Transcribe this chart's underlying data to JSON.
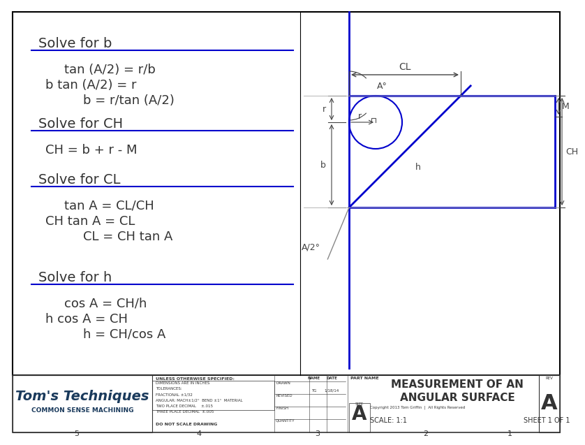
{
  "bg_color": "#ffffff",
  "border_color": "#000000",
  "blue_color": "#0000cc",
  "gray_color": "#555555",
  "dark_gray": "#333333",
  "title_font_size": 14,
  "body_font_size": 12,
  "formula_sections": [
    {
      "heading": "Solve for b",
      "lines": [
        "tan (A/2) = r/b",
        "b tan (A/2) = r",
        "b = r/tan (A/2)"
      ],
      "indents": [
        1,
        0,
        2
      ]
    },
    {
      "heading": "Solve for CH",
      "lines": [
        "CH = b + r - M"
      ],
      "indents": [
        0
      ]
    },
    {
      "heading": "Solve for CL",
      "lines": [
        "tan A = CL/CH",
        "CH tan A = CL",
        "CL = CH tan A"
      ],
      "indents": [
        1,
        0,
        2
      ]
    },
    {
      "heading": "Solve for h",
      "lines": [
        "cos A = CH/h",
        "h cos A = CH",
        "h = CH/cos A"
      ],
      "indents": [
        1,
        0,
        2
      ]
    }
  ],
  "footer_logo_line1": "Tom's Techniques",
  "footer_logo_line2": "COMMON SENSE MACHINING",
  "footer_col1": "UNLESS OTHERWISE SPECIFIED:",
  "footer_tolerances": "DIMENSIONS ARE IN INCHES\nTOLERANCES:\nFRACTIONAL ±1/32\nANGULAR: MACH±1/2°  BEND  ±1°  MATERIAL\nTWO PLACE DECIMAL    ±.015\nTHREE PLACE DECIMAL  ±.005",
  "footer_do_not_scale": "DO NOT SCALE DRAWING",
  "footer_drawn": "DRAWN",
  "footer_revised": "REVISED",
  "footer_finish": "FINISH",
  "footer_quantity": "QUANTITY",
  "footer_name_tg": "TG",
  "footer_date": "1/18/14",
  "footer_part_name": "MEASUREMENT OF AN\nANGULAR SURFACE",
  "footer_size": "A",
  "footer_scale": "SCALE: 1:1",
  "footer_sheet": "SHEET 1 OF 1",
  "footer_rev": "REV",
  "footer_rev_val": "A",
  "footer_copyright": "Copyright 2013 Tom Griffin  |  All Rights Reserved",
  "numbers_bottom": [
    "5",
    "4",
    "3",
    "2",
    "1"
  ]
}
